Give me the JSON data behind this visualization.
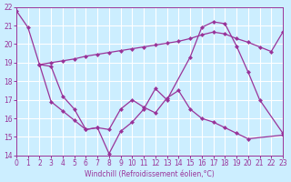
{
  "line1_x": [
    0,
    1,
    2,
    3,
    4,
    5,
    6,
    7,
    8,
    9,
    10,
    11,
    12,
    13,
    15,
    16,
    17,
    18,
    19,
    20,
    21,
    23
  ],
  "line1_y": [
    21.8,
    20.9,
    18.9,
    16.9,
    16.4,
    15.9,
    15.4,
    15.5,
    14.1,
    15.3,
    15.8,
    16.5,
    17.6,
    17.0,
    19.3,
    20.9,
    21.2,
    21.1,
    19.9,
    18.5,
    17.0,
    15.2
  ],
  "line2_x": [
    2,
    3,
    4,
    5,
    6,
    7,
    8,
    9,
    10,
    11,
    12,
    13,
    14,
    15,
    16,
    17,
    18,
    19,
    20,
    23
  ],
  "line2_y": [
    18.9,
    18.8,
    17.2,
    16.5,
    15.4,
    15.5,
    15.4,
    16.5,
    17.0,
    16.6,
    16.3,
    17.1,
    17.5,
    16.5,
    16.0,
    15.8,
    15.5,
    15.2,
    14.9,
    15.1
  ],
  "line3_x": [
    2,
    3,
    4,
    5,
    6,
    7,
    8,
    9,
    10,
    11,
    12,
    13,
    14,
    15,
    16,
    17,
    18,
    19,
    20,
    21,
    22,
    23
  ],
  "line3_y": [
    18.9,
    19.0,
    19.1,
    19.2,
    19.35,
    19.45,
    19.55,
    19.65,
    19.75,
    19.85,
    19.95,
    20.05,
    20.15,
    20.3,
    20.5,
    20.65,
    20.55,
    20.3,
    20.1,
    19.85,
    19.6,
    20.65
  ],
  "bg_color": "#cceeff",
  "line_color": "#993399",
  "grid_color": "#ffffff",
  "xlabel": "Windchill (Refroidissement éolien,°C)",
  "ylim": [
    14,
    22
  ],
  "xlim": [
    0,
    23
  ],
  "yticks": [
    14,
    15,
    16,
    17,
    18,
    19,
    20,
    21,
    22
  ],
  "xticks": [
    0,
    1,
    2,
    3,
    4,
    5,
    6,
    7,
    8,
    9,
    10,
    11,
    12,
    13,
    14,
    15,
    16,
    17,
    18,
    19,
    20,
    21,
    22,
    23
  ]
}
